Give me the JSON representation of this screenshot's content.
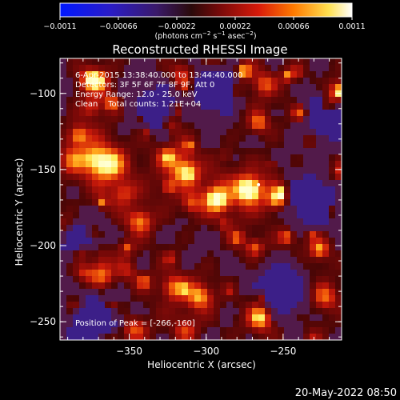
{
  "chart_data": {
    "type": "heatmap",
    "title": "Reconstructed RHESSI Image",
    "xlabel": "Heliocentric X (arcsec)",
    "ylabel": "Heliocentric Y (arcsec)",
    "xlim": [
      -395,
      -212
    ],
    "ylim": [
      -262,
      -77
    ],
    "x_ticks": [
      -350,
      -300,
      -250
    ],
    "x_tick_labels": [
      "−350",
      "−300",
      "−250"
    ],
    "y_ticks": [
      -100,
      -150,
      -200,
      -250
    ],
    "y_tick_labels": [
      "−100",
      "−150",
      "−200",
      "−250"
    ],
    "colorbar": {
      "range": [
        -0.0011,
        0.0011
      ],
      "tick_values": [
        -0.0011,
        -0.00066,
        -0.00022,
        0.00022,
        0.00066,
        0.0011
      ],
      "tick_labels": [
        "−0.0011",
        "−0.00066",
        "−0.00022",
        "0.00022",
        "0.00066",
        "0.0011"
      ],
      "unit_parts": [
        "(photons cm",
        "−2",
        " s",
        "−1",
        " asec",
        "−2",
        ")"
      ]
    },
    "info_lines": [
      "6-Apr-2015 13:38:40.000 to 13:44:40.000",
      "Detectors: 3F 5F 6F 7F 8F 9F, Att 0",
      "Energy Range: 12.0 - 25.0 keV",
      "Clean    Total counts: 1.21E+04"
    ],
    "peak_label": "Position of Peak = [-266,-160]",
    "peak": [
      -266,
      -160
    ],
    "colors": {
      "background": "#000000",
      "text": "#ffffff"
    }
  },
  "footer": {
    "date": "20-May-2022 08:50"
  }
}
